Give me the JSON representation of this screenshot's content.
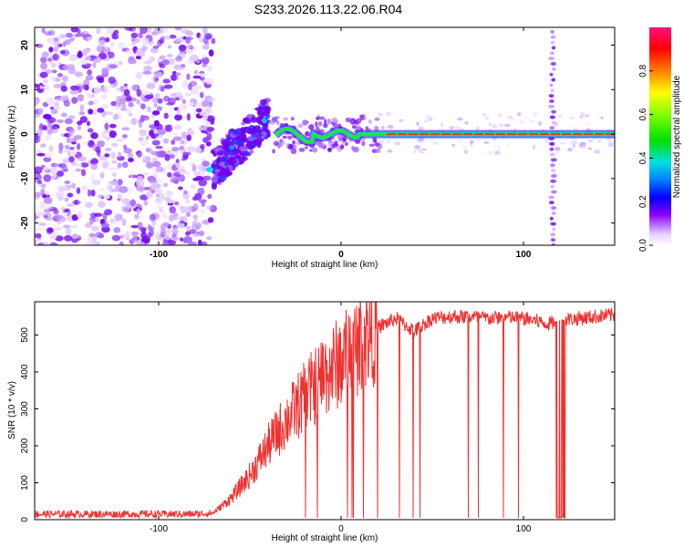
{
  "title": "S233.2026.113.22.06.R04",
  "chart_data": [
    {
      "type": "heatmap",
      "title": "S233.2026.113.22.06.R04",
      "xlabel": "Height of straight line (km)",
      "ylabel": "Frequency (Hz)",
      "xlim": [
        -168,
        150
      ],
      "ylim": [
        -25,
        24
      ],
      "xticks": [
        -100,
        0,
        100
      ],
      "yticks": [
        -20,
        -10,
        0,
        10,
        20
      ],
      "colorbar": {
        "label": "Normalized spectral amplitude",
        "range": [
          0,
          1
        ],
        "ticks": [
          0.0,
          0.2,
          0.4,
          0.6,
          0.8
        ]
      },
      "features": {
        "noise_region_x": [
          -168,
          -70
        ],
        "rising_segment": {
          "x": [
            -70,
            -40
          ],
          "freq": [
            -8,
            4
          ]
        },
        "stable_line_freq": 0,
        "interference_column_x": 116
      }
    },
    {
      "type": "line",
      "xlabel": "Height of straight line (km)",
      "ylabel": "SNR (10 * v/v)",
      "xlim": [
        -168,
        150
      ],
      "ylim": [
        0,
        590
      ],
      "xticks": [
        -100,
        0,
        100
      ],
      "yticks": [
        0,
        100,
        200,
        300,
        400,
        500
      ],
      "series": [
        {
          "name": "SNR",
          "color": "#f03030",
          "x": [
            -168,
            -120,
            -80,
            -70,
            -60,
            -50,
            -40,
            -30,
            -20,
            -10,
            0,
            10,
            20,
            30,
            40,
            50,
            60,
            70,
            80,
            90,
            100,
            110,
            114,
            120,
            130,
            140,
            150
          ],
          "values": [
            15,
            15,
            15,
            18,
            60,
            120,
            200,
            270,
            330,
            390,
            430,
            480,
            520,
            545,
            510,
            545,
            550,
            550,
            545,
            548,
            545,
            535,
            530,
            540,
            545,
            550,
            555
          ]
        }
      ]
    }
  ]
}
